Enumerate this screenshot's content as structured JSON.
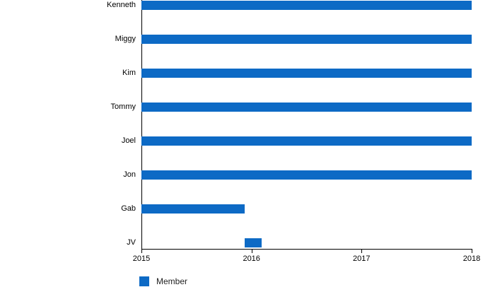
{
  "chart_data": {
    "type": "bar",
    "orientation": "horizontal",
    "title": "",
    "xlabel": "",
    "ylabel": "",
    "categories": [
      "Kenneth",
      "Miggy",
      "Kim",
      "Tommy",
      "Joel",
      "Jon",
      "Gab",
      "JV"
    ],
    "series": [
      {
        "name": "Member",
        "color": "#0d6ac5",
        "ranges": [
          [
            2015,
            2018
          ],
          [
            2015,
            2018
          ],
          [
            2015,
            2018
          ],
          [
            2015,
            2018
          ],
          [
            2015,
            2018
          ],
          [
            2015,
            2018
          ],
          [
            2015,
            2015.94
          ],
          [
            2015.94,
            2016.09
          ]
        ]
      }
    ],
    "x_axis": {
      "min": 2015,
      "max": 2018,
      "ticks": [
        "2015",
        "2016",
        "2017",
        "2018"
      ]
    },
    "grid": false,
    "background": "#ffffff",
    "axis_color": "#000000",
    "legend": {
      "position": "bottom-left",
      "entries": [
        {
          "label": "Member",
          "color": "#0d6ac5"
        }
      ]
    }
  }
}
